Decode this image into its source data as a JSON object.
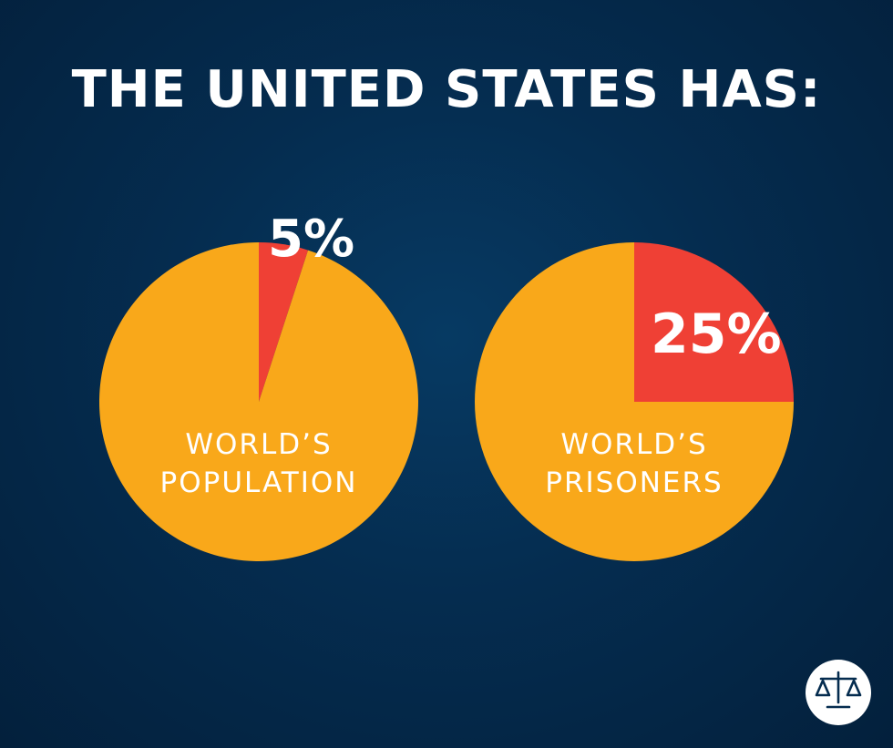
{
  "header": {
    "title": "THE UNITED STATES HAS:"
  },
  "chart_data": [
    {
      "type": "pie",
      "slices": [
        {
          "label": "5%",
          "value": 5,
          "color": "#ef4035"
        },
        {
          "label": "",
          "value": 95,
          "color": "#f9a81a"
        }
      ],
      "caption_lines": [
        "WORLD’S",
        "POPULATION"
      ]
    },
    {
      "type": "pie",
      "slices": [
        {
          "label": "25%",
          "value": 25,
          "color": "#ef4035"
        },
        {
          "label": "",
          "value": 75,
          "color": "#f9a81a"
        }
      ],
      "caption_lines": [
        "WORLD’S",
        "PRISONERS"
      ]
    }
  ],
  "logo": {
    "icon": "scales-of-justice-icon"
  }
}
